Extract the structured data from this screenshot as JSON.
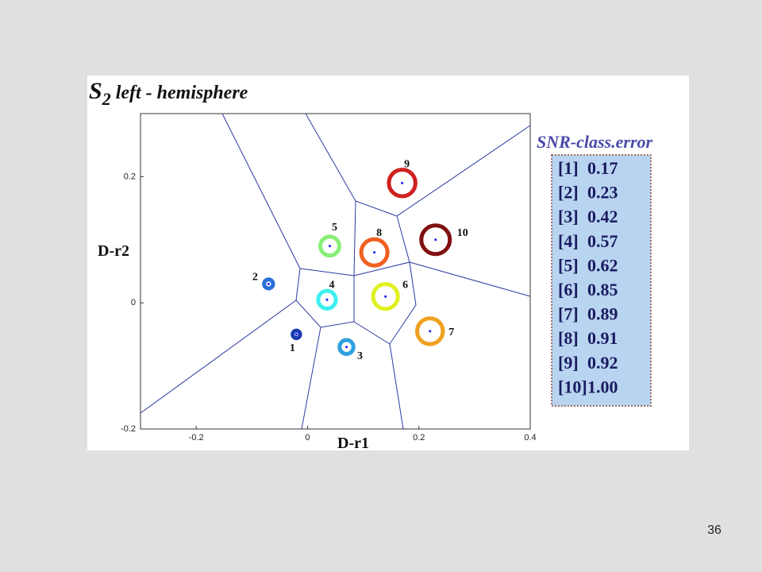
{
  "slide_number": "36",
  "chart_data": {
    "type": "scatter",
    "title": {
      "symbol": "S",
      "subscript": "2",
      "text": "left - hemisphere"
    },
    "xlabel": "D-r1",
    "ylabel": "D-r2",
    "xlim": [
      -0.3,
      0.4
    ],
    "xticks": [
      -0.2,
      0,
      0.2,
      0.4
    ],
    "ylim": [
      -0.2,
      0.3
    ],
    "yticks": [
      -0.2,
      0,
      0.2
    ],
    "legend_title": "SNR-class.error",
    "labels": [
      "1",
      "2",
      "3",
      "4",
      "5",
      "6",
      "7",
      "8",
      "9",
      "10"
    ],
    "legend_keys": [
      "[1]",
      "[2]",
      "[3]",
      "[4]",
      "[5]",
      "[6]",
      "[7]",
      "[8]",
      "[9]",
      "[10]"
    ],
    "x": [
      -0.02,
      -0.07,
      0.07,
      0.035,
      0.04,
      0.14,
      0.22,
      0.12,
      0.17,
      0.23
    ],
    "y": [
      -0.05,
      0.03,
      -0.07,
      0.005,
      0.09,
      0.01,
      -0.045,
      0.08,
      0.19,
      0.1
    ],
    "values": [
      0.17,
      0.23,
      0.42,
      0.57,
      0.62,
      0.85,
      0.89,
      0.91,
      0.92,
      1
    ],
    "value_labels": [
      "0.17",
      "0.23",
      "0.42",
      "0.57",
      "0.62",
      "0.85",
      "0.89",
      "0.91",
      "0.92",
      "1.00"
    ],
    "colors": [
      "#1a3cb0",
      "#2a6fd6",
      "#2ea0e0",
      "#3ef0f0",
      "#88ee77",
      "#e0f020",
      "#f0a020",
      "#f06020",
      "#d02020",
      "#801010"
    ]
  }
}
